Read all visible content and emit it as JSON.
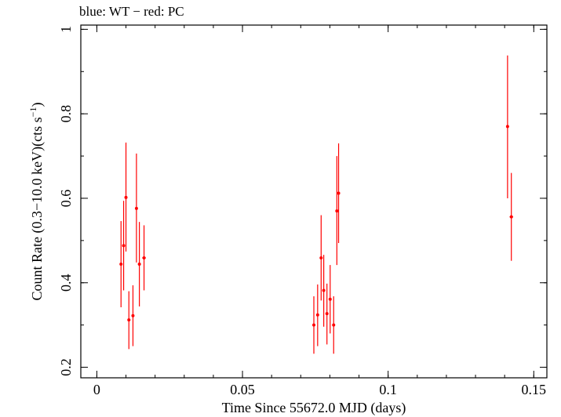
{
  "chart_data": {
    "type": "scatter",
    "title": "blue: WT − red: PC",
    "xlabel": "Time Since 55672.0 MJD (days)",
    "ylabel_main": "Count Rate (0.3−10.0 keV)(cts s",
    "ylabel_sup": "−1",
    "ylabel_close": ")",
    "xlim": [
      -0.0055,
      0.1545
    ],
    "ylim": [
      0.175,
      1.01
    ],
    "x_ticks": [
      {
        "value": 0,
        "label": "0"
      },
      {
        "value": 0.05,
        "label": "0.05"
      },
      {
        "value": 0.1,
        "label": "0.1"
      },
      {
        "value": 0.15,
        "label": "0.15"
      }
    ],
    "y_ticks": [
      {
        "value": 0.2,
        "label": "0.2"
      },
      {
        "value": 0.4,
        "label": "0.4"
      },
      {
        "value": 0.6,
        "label": "0.6"
      },
      {
        "value": 0.8,
        "label": "0.8"
      },
      {
        "value": 1.0,
        "label": "1"
      }
    ],
    "series": [
      {
        "name": "PC",
        "color": "#ff0000",
        "points": [
          {
            "x": 0.0083,
            "y": 0.444,
            "ylo": 0.342,
            "yhi": 0.546,
            "xerr": 0.0004
          },
          {
            "x": 0.0092,
            "y": 0.488,
            "ylo": 0.382,
            "yhi": 0.594,
            "xerr": 0.0004
          },
          {
            "x": 0.01,
            "y": 0.602,
            "ylo": 0.474,
            "yhi": 0.732,
            "xerr": 0.0004
          },
          {
            "x": 0.011,
            "y": 0.312,
            "ylo": 0.243,
            "yhi": 0.38,
            "xerr": 0.0004
          },
          {
            "x": 0.0124,
            "y": 0.322,
            "ylo": 0.25,
            "yhi": 0.394,
            "xerr": 0.0004
          },
          {
            "x": 0.0136,
            "y": 0.576,
            "ylo": 0.448,
            "yhi": 0.706,
            "xerr": 0.0004
          },
          {
            "x": 0.0146,
            "y": 0.444,
            "ylo": 0.344,
            "yhi": 0.544,
            "xerr": 0.0004
          },
          {
            "x": 0.0162,
            "y": 0.459,
            "ylo": 0.382,
            "yhi": 0.536,
            "xerr": 0.0006
          },
          {
            "x": 0.0745,
            "y": 0.3,
            "ylo": 0.232,
            "yhi": 0.368,
            "xerr": 0.0004
          },
          {
            "x": 0.0758,
            "y": 0.324,
            "ylo": 0.25,
            "yhi": 0.396,
            "xerr": 0.0004
          },
          {
            "x": 0.077,
            "y": 0.459,
            "ylo": 0.358,
            "yhi": 0.56,
            "xerr": 0.0004
          },
          {
            "x": 0.0779,
            "y": 0.382,
            "ylo": 0.296,
            "yhi": 0.466,
            "xerr": 0.0004
          },
          {
            "x": 0.079,
            "y": 0.327,
            "ylo": 0.254,
            "yhi": 0.398,
            "xerr": 0.0004
          },
          {
            "x": 0.0801,
            "y": 0.361,
            "ylo": 0.28,
            "yhi": 0.442,
            "xerr": 0.0004
          },
          {
            "x": 0.0813,
            "y": 0.3,
            "ylo": 0.232,
            "yhi": 0.368,
            "xerr": 0.0004
          },
          {
            "x": 0.0824,
            "y": 0.57,
            "ylo": 0.442,
            "yhi": 0.7,
            "xerr": 0.0004
          },
          {
            "x": 0.083,
            "y": 0.612,
            "ylo": 0.494,
            "yhi": 0.73,
            "xerr": 0.0004
          },
          {
            "x": 0.141,
            "y": 0.77,
            "ylo": 0.6,
            "yhi": 0.938,
            "xerr": 0.0004
          },
          {
            "x": 0.1423,
            "y": 0.556,
            "ylo": 0.452,
            "yhi": 0.66,
            "xerr": 0.0006
          }
        ]
      }
    ]
  }
}
